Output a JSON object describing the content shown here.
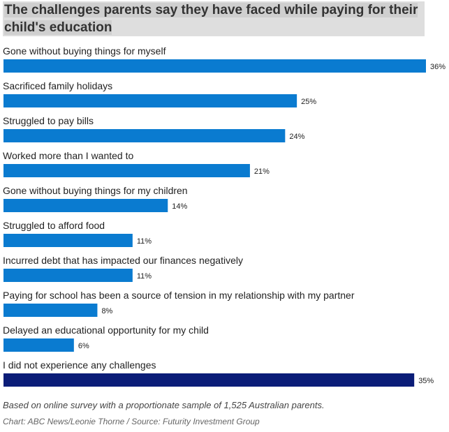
{
  "chart_data": {
    "type": "bar",
    "orientation": "horizontal",
    "title": "The challenges parents say they have faced while paying for their child's education",
    "categories": [
      "Gone without buying things for myself",
      "Sacrificed family holidays",
      "Struggled to pay bills",
      "Worked more than I wanted to",
      "Gone without buying things for my children",
      "Struggled to afford food",
      "Incurred debt that has impacted our finances negatively",
      "Paying for school has been a source of tension in my relationship with my partner",
      "Delayed an educational opportunity for my child",
      "I did not experience any challenges"
    ],
    "values": [
      36,
      25,
      24,
      21,
      14,
      11,
      11,
      8,
      6,
      35
    ],
    "value_labels": [
      "36%",
      "25%",
      "24%",
      "21%",
      "14%",
      "11%",
      "11%",
      "8%",
      "6%",
      "35%"
    ],
    "colors": [
      "#0a7bd0",
      "#0a7bd0",
      "#0a7bd0",
      "#0a7bd0",
      "#0a7bd0",
      "#0a7bd0",
      "#0a7bd0",
      "#0a7bd0",
      "#0a7bd0",
      "#0b1d78"
    ],
    "unit": "%",
    "xlim": [
      0,
      36
    ],
    "grid": false,
    "legend": "none"
  },
  "footnote": "Based on online survey with a proportionate sample of 1,525 Australian parents.",
  "credit": "Chart: ABC News/Leonie Thorne / Source: Futurity Investment Group"
}
